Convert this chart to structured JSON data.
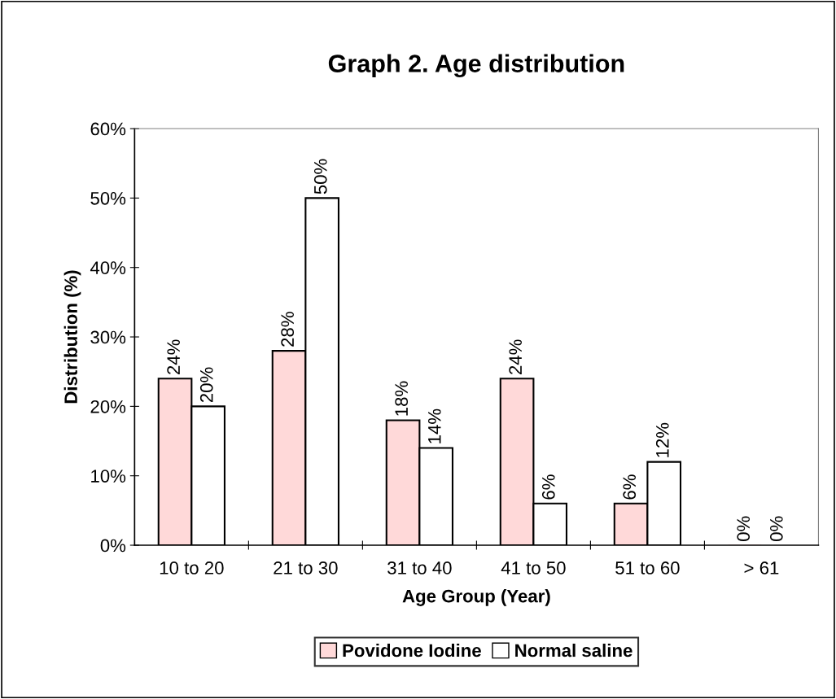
{
  "chart_data": {
    "type": "bar",
    "title": "Graph 2. Age distribution",
    "xlabel": "Age Group (Year)",
    "ylabel": "Distribution (%)",
    "categories": [
      "10 to 20",
      "21 to 30",
      "31 to 40",
      "41 to 50",
      "51 to 60",
      "> 61"
    ],
    "series": [
      {
        "name": "Povidone Iodine",
        "color": "#ffd9d9",
        "values": [
          24,
          28,
          18,
          24,
          6,
          0
        ],
        "value_labels": [
          "24%",
          "28%",
          "18%",
          "24%",
          "6%",
          "0%"
        ]
      },
      {
        "name": "Normal saline",
        "color": "#ffffff",
        "values": [
          20,
          50,
          14,
          6,
          12,
          0
        ],
        "value_labels": [
          "20%",
          "50%",
          "14%",
          "6%",
          "12%",
          "0%"
        ]
      }
    ],
    "ylim": [
      0,
      60
    ],
    "yticks": [
      {
        "value": 0,
        "label": "0%"
      },
      {
        "value": 10,
        "label": "10%"
      },
      {
        "value": 20,
        "label": "20%"
      },
      {
        "value": 30,
        "label": "30%"
      },
      {
        "value": 40,
        "label": "40%"
      },
      {
        "value": 50,
        "label": "50%"
      },
      {
        "value": 60,
        "label": "60%"
      }
    ],
    "grid": false,
    "legend": "bottom"
  }
}
